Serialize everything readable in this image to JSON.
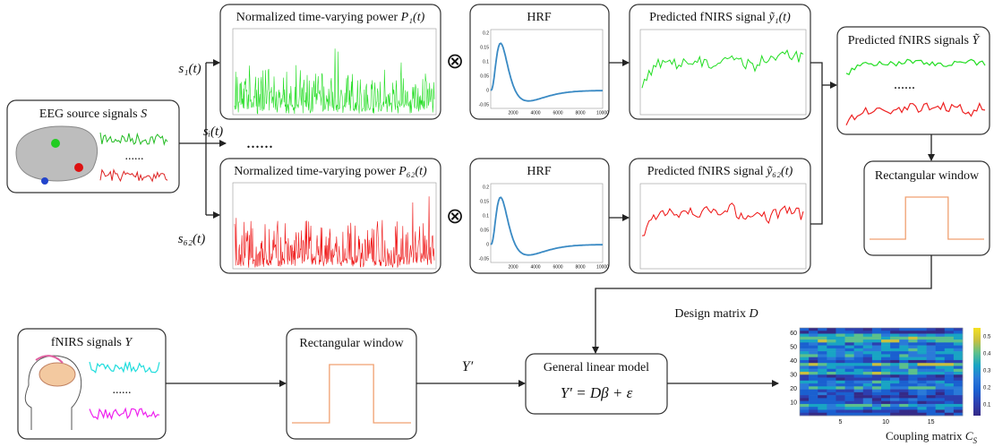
{
  "eeg_box": {
    "label": "EEG source signals",
    "symbol": "S",
    "ellipsis": "......"
  },
  "signals": [
    "s₁(t)",
    "sᵢ(t)",
    "s₆₂(t)"
  ],
  "signal_ellipsis": "......",
  "power_boxes": [
    {
      "label": "Normalized time-varying power",
      "symbol": "P₁(t)"
    },
    {
      "label": "Normalized time-varying power",
      "symbol": "P₆₂(t)"
    }
  ],
  "convolution": "⊗",
  "hrf_box": {
    "label": "HRF",
    "yticks": [
      "0.2",
      "0.15",
      "0.1",
      "0.05",
      "0",
      "-0.05"
    ],
    "xticks": [
      "2000",
      "4000",
      "6000",
      "8000",
      "10000"
    ]
  },
  "predicted_boxes": [
    {
      "label": "Predicted fNIRS signal",
      "symbol": "ỹ₁(t)"
    },
    {
      "label": "Predicted fNIRS signal",
      "symbol": "ỹ₆₂(t)"
    }
  ],
  "predicted_all": {
    "label": "Predicted fNIRS signals",
    "symbol": "Ỹ",
    "ellipsis": "......"
  },
  "window": {
    "label": "Rectangular window"
  },
  "design_matrix": {
    "label": "Design matrix",
    "symbol": "D"
  },
  "fnirs_box": {
    "label": "fNIRS signals",
    "symbol": "Y",
    "ellipsis": "......"
  },
  "y_prime": "Y′",
  "glm": {
    "label": "General linear model",
    "equation": "Y′ = Dβ + ε"
  },
  "coupling": {
    "label": "Coupling matrix",
    "symbol": "C",
    "subscript": "S",
    "yticks": [
      "60",
      "50",
      "40",
      "30",
      "20",
      "10"
    ],
    "xticks": [
      "5",
      "10",
      "15"
    ],
    "colorbar_ticks": [
      "0.5",
      "0.4",
      "0.3",
      "0.2",
      "0.1"
    ]
  }
}
